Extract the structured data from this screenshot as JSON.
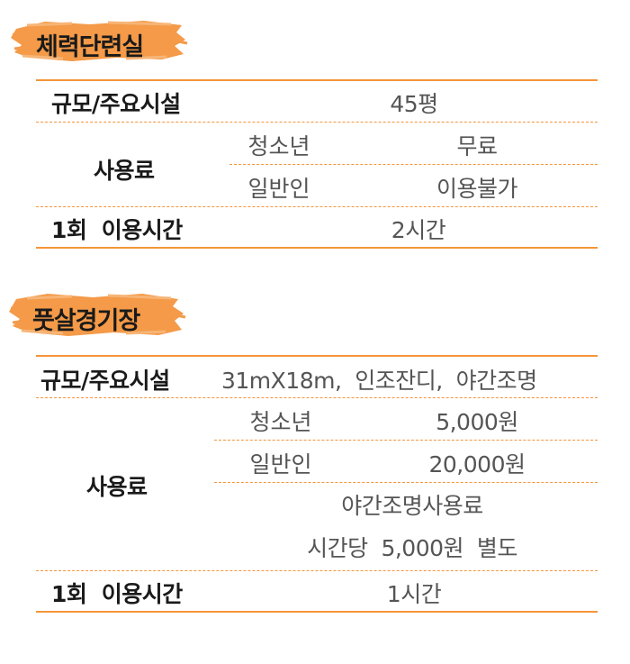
{
  "colors": {
    "accent": "#f5953a",
    "brush": "#f49a48",
    "label": "#1a1a1a",
    "value": "#555555"
  },
  "section1": {
    "title": "체력단련실",
    "scale_label": "규모/주요시설",
    "scale_value": "45평",
    "fee_label": "사용료",
    "youth_label": "청소년",
    "youth_value": "무료",
    "adult_label": "일반인",
    "adult_value": "이용불가",
    "time_label": "1회  이용시간",
    "time_value": "2시간"
  },
  "section2": {
    "title": "풋살경기장",
    "scale_label": "규모/주요시설",
    "scale_value": "31mX18m,  인조잔디,  야간조명",
    "fee_label": "사용료",
    "youth_label": "청소년",
    "youth_value": "5,000원",
    "adult_label": "일반인",
    "adult_value": "20,000원",
    "night_line1": "야간조명사용료",
    "night_line2": "시간당  5,000원  별도",
    "time_label": "1회  이용시간",
    "time_value": "1시간"
  }
}
